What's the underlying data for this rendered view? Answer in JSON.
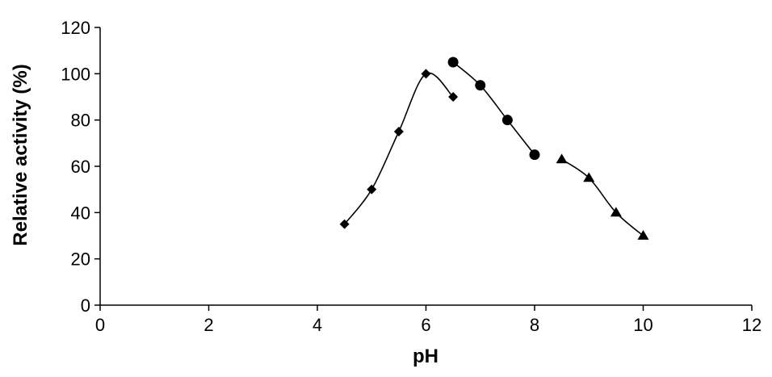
{
  "chart_data": {
    "type": "line",
    "title": "",
    "xlabel": "pH",
    "ylabel": "Relative activity (%)",
    "xlim": [
      0,
      12
    ],
    "ylim": [
      0,
      120
    ],
    "xticks": [
      0,
      2,
      4,
      6,
      8,
      10,
      12
    ],
    "yticks": [
      0,
      20,
      40,
      60,
      80,
      100,
      120
    ],
    "grid": false,
    "legend": "none",
    "colors": {
      "axis": "#000000",
      "series": "#000000"
    },
    "series": [
      {
        "marker": "diamond",
        "points": [
          {
            "x": 4.5,
            "y": 35
          },
          {
            "x": 5.0,
            "y": 50
          },
          {
            "x": 5.5,
            "y": 75
          },
          {
            "x": 6.0,
            "y": 100
          },
          {
            "x": 6.5,
            "y": 90
          }
        ]
      },
      {
        "marker": "circle",
        "points": [
          {
            "x": 6.5,
            "y": 105
          },
          {
            "x": 7.0,
            "y": 95
          },
          {
            "x": 7.5,
            "y": 80
          },
          {
            "x": 8.0,
            "y": 65
          }
        ]
      },
      {
        "marker": "triangle",
        "points": [
          {
            "x": 8.5,
            "y": 63
          },
          {
            "x": 9.0,
            "y": 55
          },
          {
            "x": 9.5,
            "y": 40
          },
          {
            "x": 10.0,
            "y": 30
          }
        ]
      }
    ]
  }
}
